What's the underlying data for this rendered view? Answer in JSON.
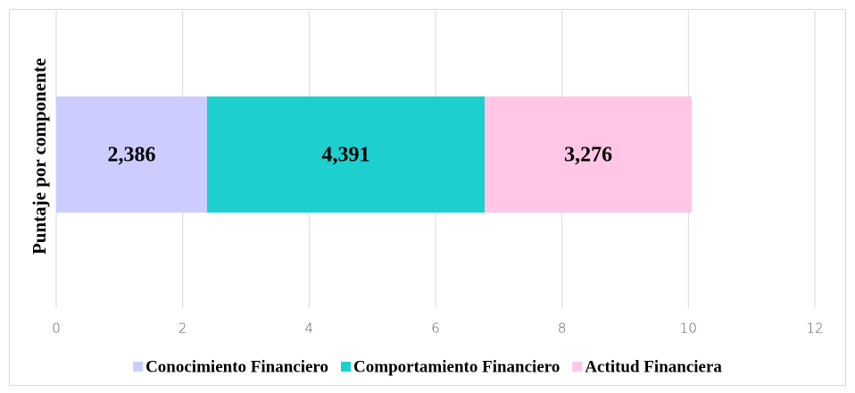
{
  "chart_data": {
    "type": "stacked-horizontal-bar",
    "y_label": "Puntaje por componente",
    "series": [
      {
        "name": "Conocimiento Financiero",
        "color": "#ccccff",
        "values": [
          2.386
        ],
        "value_labels": [
          "2,386"
        ]
      },
      {
        "name": "Comportamiento Financiero",
        "color": "#1ecfcf",
        "values": [
          4.391
        ],
        "value_labels": [
          "4,391"
        ]
      },
      {
        "name": "Actitud Financiera",
        "color": "#ffc6e6",
        "values": [
          3.276
        ],
        "value_labels": [
          "3,276"
        ]
      }
    ],
    "xlim": [
      0,
      12
    ],
    "xticks": [
      0,
      2,
      4,
      6,
      8,
      10,
      12
    ],
    "grid": true,
    "legend": "bottom"
  }
}
